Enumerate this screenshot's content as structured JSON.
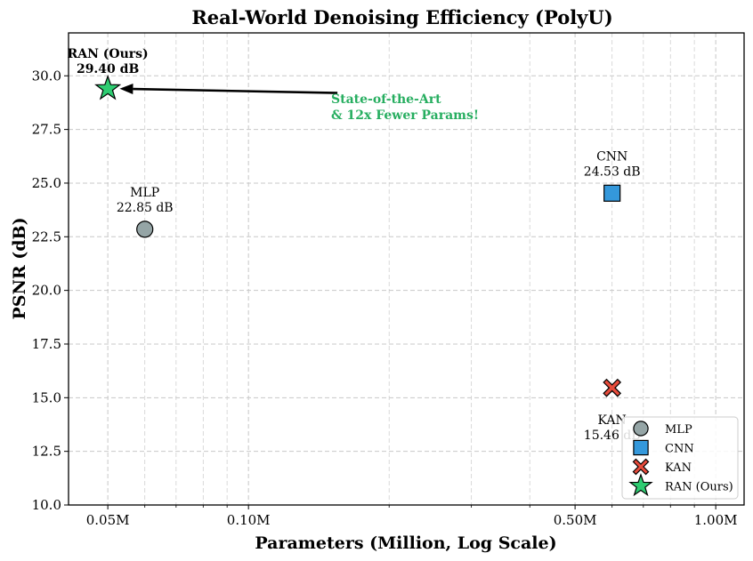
{
  "chart_data": {
    "type": "scatter",
    "title": "Real-World Denoising Efficiency (PolyU)",
    "xlabel": "Parameters (Million, Log Scale)",
    "ylabel": "PSNR (dB)",
    "xscale": "log",
    "xlim": [
      0.0412,
      1.15
    ],
    "ylim": [
      10.0,
      32.0
    ],
    "xticks": [
      {
        "value": 0.05,
        "label": "0.05M"
      },
      {
        "value": 0.1,
        "label": "0.10M"
      },
      {
        "value": 0.5,
        "label": "0.50M"
      },
      {
        "value": 1.0,
        "label": "1.00M"
      }
    ],
    "yticks": [
      {
        "value": 10.0,
        "label": "10.0"
      },
      {
        "value": 12.5,
        "label": "12.5"
      },
      {
        "value": 15.0,
        "label": "15.0"
      },
      {
        "value": 17.5,
        "label": "17.5"
      },
      {
        "value": 20.0,
        "label": "20.0"
      },
      {
        "value": 22.5,
        "label": "22.5"
      },
      {
        "value": 25.0,
        "label": "25.0"
      },
      {
        "value": 27.5,
        "label": "27.5"
      },
      {
        "value": 30.0,
        "label": "30.0"
      }
    ],
    "grid": true,
    "legend_position": "lower-right",
    "series": [
      {
        "name": "MLP",
        "x": 0.06,
        "y": 22.85,
        "marker": "circle",
        "color": "#95a5a6",
        "label_name": "MLP",
        "label_value": "22.85 dB",
        "label_pos": "above",
        "bold": false
      },
      {
        "name": "CNN",
        "x": 0.6,
        "y": 24.53,
        "marker": "square",
        "color": "#3498db",
        "label_name": "CNN",
        "label_value": "24.53 dB",
        "label_pos": "above",
        "bold": false
      },
      {
        "name": "KAN",
        "x": 0.6,
        "y": 15.46,
        "marker": "x",
        "color": "#e74c3c",
        "label_name": "KAN",
        "label_value": "15.46 dB",
        "label_pos": "below",
        "bold": false
      },
      {
        "name": "RAN (Ours)",
        "x": 0.05,
        "y": 29.4,
        "marker": "star",
        "color": "#2ecc71",
        "label_name": "RAN (Ours)",
        "label_value": "29.40 dB",
        "label_pos": "above",
        "bold": true
      }
    ],
    "annotation": {
      "lines": [
        "State-of-the-Art",
        "& 12x Fewer Params!"
      ],
      "color": "#27ae60",
      "arrow_from": {
        "x": 0.155,
        "y": 29.2
      },
      "arrow_to": {
        "x": 0.053,
        "y": 29.4
      }
    }
  }
}
